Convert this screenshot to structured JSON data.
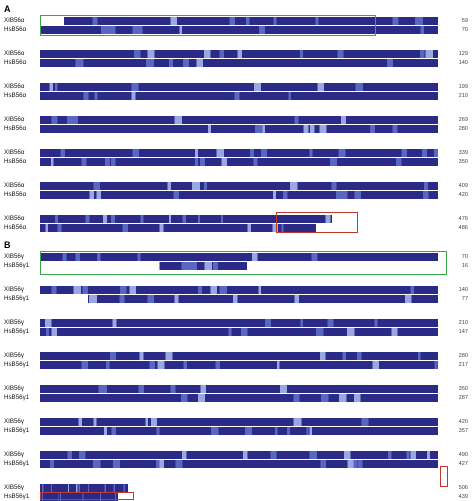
{
  "panels": [
    {
      "label": "A",
      "top": 4,
      "seq_names": [
        "XIB56α",
        "HsB56α"
      ],
      "blocks": [
        {
          "ends": [
            "59",
            "70"
          ]
        },
        {
          "ends": [
            "129",
            "140"
          ]
        },
        {
          "ends": [
            "199",
            "210"
          ]
        },
        {
          "ends": [
            "269",
            "280"
          ]
        },
        {
          "ends": [
            "339",
            "350"
          ]
        },
        {
          "ends": [
            "409",
            "420"
          ]
        },
        {
          "ends": [
            "476",
            "486"
          ]
        }
      ]
    },
    {
      "label": "B",
      "top": 240,
      "seq_names": [
        "XIB56γ",
        "HsB56γ1"
      ],
      "blocks": [
        {
          "ends": [
            "70",
            "16"
          ]
        },
        {
          "ends": [
            "140",
            "77"
          ]
        },
        {
          "ends": [
            "210",
            "147"
          ]
        },
        {
          "ends": [
            "280",
            "217"
          ]
        },
        {
          "ends": [
            "350",
            "287"
          ]
        },
        {
          "ends": [
            "420",
            "357"
          ]
        },
        {
          "ends": [
            "490",
            "427"
          ]
        },
        {
          "ends": [
            "506",
            "439"
          ]
        }
      ]
    }
  ],
  "colors": {
    "conserved": "#2b2a86",
    "similar": "#5a66c4",
    "weak": "#9aa8e2",
    "gap": "#ffffff",
    "green_box": "#3aa64a",
    "red_box": "#c0392b"
  }
}
